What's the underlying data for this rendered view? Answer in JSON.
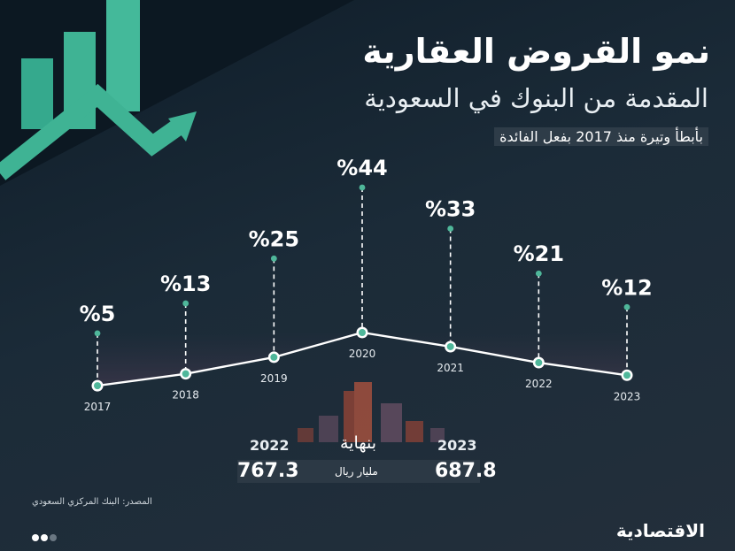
{
  "title": "نمو القروض العقارية",
  "subtitle": "المقدمة من البنوك في السعودية",
  "tagline": "بأبطأ وتيرة منذ 2017 بفعل الفائدة",
  "chart_data": {
    "type": "line",
    "title": "نمو القروض العقارية",
    "x": [
      "2017",
      "2018",
      "2019",
      "2020",
      "2021",
      "2022",
      "2023"
    ],
    "values": [
      5,
      13,
      25,
      44,
      33,
      21,
      12
    ],
    "labels": [
      "%5",
      "%13",
      "%25",
      "%44",
      "%33",
      "%21",
      "%12"
    ],
    "unit": "%"
  },
  "comparison": {
    "end_label": "بنهاية",
    "unit": "مليار ريال",
    "left": {
      "year": "2022",
      "value": "767.3"
    },
    "right": {
      "year": "2023",
      "value": "687.8"
    }
  },
  "source": "المصدر: البنك المركزي السعودي",
  "logo": "الاقتصادية",
  "colors": {
    "accent": "#4fb79a",
    "background": "#1a2733",
    "text": "#ffffff"
  }
}
